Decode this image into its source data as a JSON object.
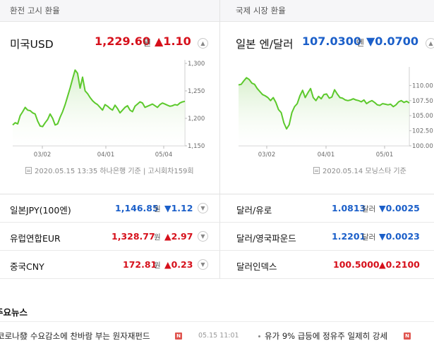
{
  "left": {
    "section_title": "환전 고시 환율",
    "name": "미국USD",
    "value": "1,229.60",
    "unit": "원",
    "change": "▲1.10",
    "direction": "up",
    "source": "2020.05.15 13:35 하나은행 기준 | 고시회차159회"
  },
  "right": {
    "section_title": "국제 시장 환율",
    "name": "일본 엔/달러",
    "value": "107.0300",
    "unit": "엔",
    "change": "▼0.0700",
    "direction": "down",
    "source": "2020.05.14 모닝스타 기준"
  },
  "rows": [
    {
      "name": "일본JPY(100엔)",
      "value": "1,146.85",
      "unit": "원",
      "change": "▼1.12",
      "direction": "down"
    },
    {
      "name": "달러/유로",
      "value": "1.0813",
      "unit": "달러",
      "change": "▼0.0025",
      "direction": "down"
    },
    {
      "name": "유럽연합EUR",
      "value": "1,328.77",
      "unit": "원",
      "change": "▲2.97",
      "direction": "up"
    },
    {
      "name": "달러/영국파운드",
      "value": "1.2201",
      "unit": "달러",
      "change": "▼0.0023",
      "direction": "down"
    },
    {
      "name": "중국CNY",
      "value": "172.81",
      "unit": "원",
      "change": "▲0.23",
      "direction": "up"
    },
    {
      "name": "달러인덱스",
      "value": "100.5000",
      "unit": "",
      "change": "▲0.2100",
      "direction": "up"
    }
  ],
  "news": {
    "title": "주요뉴스",
    "items": [
      {
        "text": "코로나發 수요감소에 찬바람 부는 원자재펀드",
        "badge": "N",
        "time": "05.15 11:01"
      },
      {
        "text": "유가 9% 급등에 정유주 일제히 강세",
        "badge": "N",
        "time": ""
      }
    ]
  },
  "colors": {
    "up": "#d6101b",
    "down": "#1b5fc9",
    "line": "#5cc92c",
    "fill": "#d8f0cd"
  },
  "chart_data": [
    {
      "type": "area",
      "name": "",
      "x_ticks": [
        "03/02",
        "04/01",
        "05/04"
      ],
      "ylim": [
        1150,
        1300
      ],
      "y_ticks": [
        1300,
        1250,
        1200,
        1150
      ],
      "y_tick_labels": [
        "1,300",
        "1,250",
        "1,200",
        "1,150"
      ],
      "values": [
        1188,
        1192,
        1190,
        1205,
        1212,
        1220,
        1215,
        1214,
        1210,
        1208,
        1195,
        1186,
        1185,
        1192,
        1198,
        1208,
        1200,
        1188,
        1190,
        1202,
        1212,
        1225,
        1240,
        1255,
        1272,
        1288,
        1282,
        1255,
        1275,
        1250,
        1245,
        1238,
        1232,
        1228,
        1225,
        1220,
        1215,
        1225,
        1222,
        1218,
        1215,
        1224,
        1218,
        1210,
        1215,
        1220,
        1223,
        1215,
        1212,
        1222,
        1226,
        1230,
        1228,
        1220,
        1222,
        1224,
        1226,
        1223,
        1220,
        1225,
        1228,
        1226,
        1224,
        1222,
        1223,
        1225,
        1224,
        1228,
        1230,
        1231
      ]
    },
    {
      "type": "area",
      "name": "",
      "x_ticks": [
        "03/02",
        "04/01",
        "05/01"
      ],
      "ylim": [
        100,
        112.5
      ],
      "y_ticks": [
        110,
        107.5,
        105,
        102.5,
        100
      ],
      "y_tick_labels": [
        "110.00",
        "107.50",
        "105.00",
        "102.50",
        "100.00"
      ],
      "values": [
        110.1,
        110.2,
        110.8,
        111.3,
        111.0,
        110.4,
        110.2,
        109.5,
        109.0,
        108.5,
        108.3,
        108.0,
        107.5,
        108.0,
        107.2,
        106.0,
        105.5,
        103.8,
        102.8,
        103.5,
        105.5,
        106.5,
        107.0,
        108.3,
        109.2,
        108.0,
        108.8,
        109.5,
        108.0,
        107.5,
        108.2,
        107.8,
        108.5,
        108.6,
        107.9,
        108.1,
        109.3,
        108.6,
        108.0,
        107.9,
        107.6,
        107.5,
        107.6,
        107.8,
        107.6,
        107.5,
        107.3,
        107.6,
        107.0,
        107.3,
        107.5,
        107.2,
        106.8,
        106.7,
        107.0,
        106.9,
        106.8,
        106.9,
        106.5,
        106.8,
        107.3,
        107.5,
        107.2,
        107.4,
        107.1
      ]
    }
  ]
}
